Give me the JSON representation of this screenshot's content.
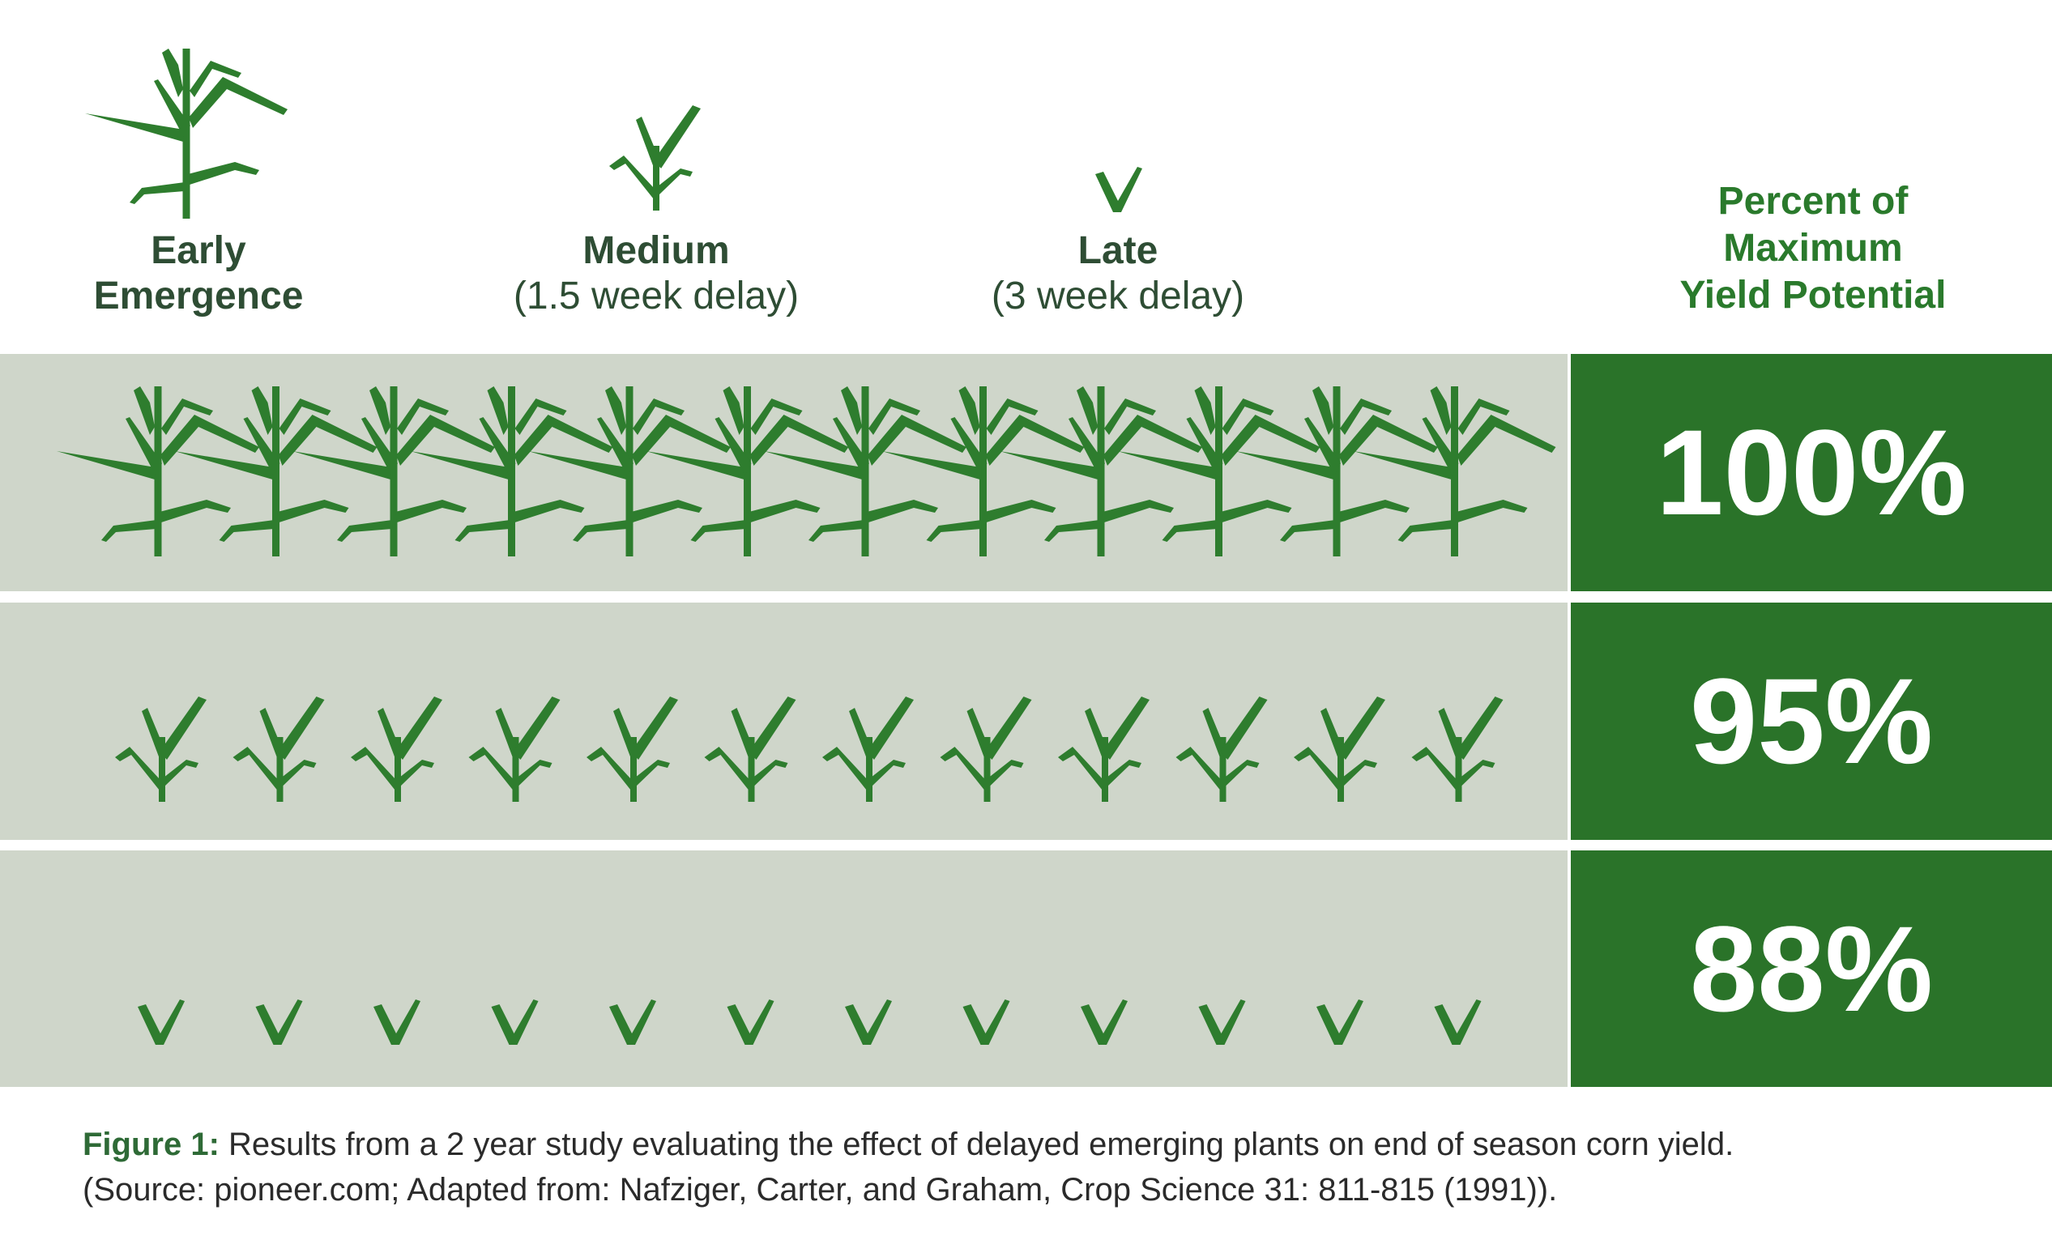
{
  "chart_data": {
    "type": "table",
    "columns": [
      {
        "title": "Early",
        "subtitle": "Emergence"
      },
      {
        "title": "Medium",
        "subtitle": "(1.5 week delay)"
      },
      {
        "title": "Late",
        "subtitle": "(3 week delay)"
      }
    ],
    "value_header": [
      "Percent of",
      "Maximum",
      "Yield Potential"
    ],
    "rows": [
      {
        "plant": "early",
        "count": 12,
        "value": "100%"
      },
      {
        "plant": "medium",
        "count": 12,
        "value": "95%"
      },
      {
        "plant": "late",
        "count": 12,
        "value": "88%"
      }
    ]
  },
  "caption": {
    "label": "Figure 1:",
    "line1": "Results from a 2 year study evaluating the effect of delayed emerging plants on end of season corn yield.",
    "line2": "(Source: pioneer.com; Adapted from: Nafziger, Carter, and Graham, Crop Science 31: 811-815 (1991))."
  },
  "colors": {
    "plant": "#2e7d2e",
    "row_bg": "#cfd6ca",
    "value_bg": "#2a7329",
    "header_text": "#2e4d34",
    "accent": "#2a7a2c"
  },
  "icons": [
    "corn-plant-early-icon",
    "corn-plant-medium-icon",
    "corn-plant-late-icon"
  ]
}
